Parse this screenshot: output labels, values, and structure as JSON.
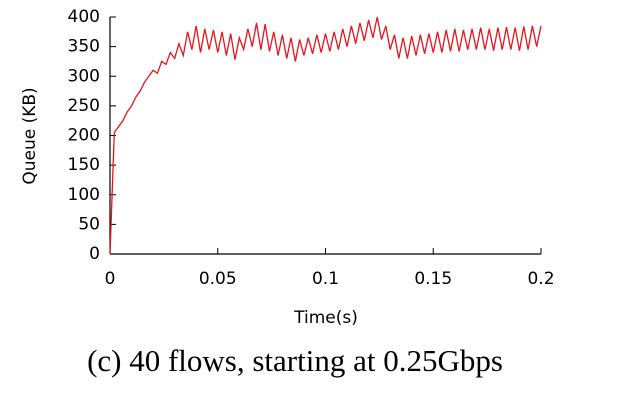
{
  "chart_data": {
    "type": "line",
    "caption": "(c) 40 flows, starting at 0.25Gbps",
    "x_label": "Time(s)",
    "y_label": "Queue (KB)",
    "xlim": [
      0,
      0.2
    ],
    "xticks": [
      0,
      0.05,
      0.1,
      0.15,
      0.2
    ],
    "ylim": [
      0,
      400
    ],
    "yticks": [
      0,
      50,
      100,
      150,
      200,
      250,
      300,
      350,
      400
    ],
    "x": [
      0,
      0.002,
      0.004,
      0.006,
      0.008,
      0.01,
      0.012,
      0.014,
      0.016,
      0.018,
      0.02,
      0.022,
      0.024,
      0.026,
      0.028,
      0.03,
      0.032,
      0.034,
      0.036,
      0.038,
      0.04,
      0.042,
      0.044,
      0.046,
      0.048,
      0.05,
      0.052,
      0.054,
      0.056,
      0.058,
      0.06,
      0.062,
      0.064,
      0.066,
      0.068,
      0.07,
      0.072,
      0.074,
      0.076,
      0.078,
      0.08,
      0.082,
      0.084,
      0.086,
      0.088,
      0.09,
      0.092,
      0.094,
      0.096,
      0.098,
      0.1,
      0.102,
      0.104,
      0.106,
      0.108,
      0.11,
      0.112,
      0.114,
      0.116,
      0.118,
      0.12,
      0.122,
      0.124,
      0.126,
      0.128,
      0.13,
      0.132,
      0.134,
      0.136,
      0.138,
      0.14,
      0.142,
      0.144,
      0.146,
      0.148,
      0.15,
      0.152,
      0.154,
      0.156,
      0.158,
      0.16,
      0.162,
      0.164,
      0.166,
      0.168,
      0.17,
      0.172,
      0.174,
      0.176,
      0.178,
      0.18,
      0.182,
      0.184,
      0.186,
      0.188,
      0.19,
      0.192,
      0.194,
      0.196,
      0.198,
      0.2
    ],
    "series": [
      {
        "color": "#e8141c",
        "values": [
          0,
          205,
          215,
          225,
          240,
          250,
          265,
          275,
          290,
          300,
          310,
          305,
          325,
          320,
          340,
          330,
          355,
          335,
          375,
          345,
          385,
          340,
          380,
          345,
          378,
          340,
          375,
          335,
          372,
          328,
          365,
          345,
          380,
          350,
          390,
          345,
          388,
          342,
          375,
          335,
          370,
          330,
          365,
          325,
          362,
          335,
          365,
          338,
          370,
          340,
          372,
          342,
          375,
          345,
          380,
          350,
          385,
          355,
          390,
          360,
          395,
          365,
          400,
          362,
          385,
          345,
          370,
          330,
          365,
          330,
          368,
          335,
          370,
          338,
          372,
          340,
          375,
          340,
          378,
          342,
          380,
          342,
          378,
          345,
          380,
          345,
          382,
          345,
          380,
          343,
          382,
          345,
          383,
          345,
          382,
          343,
          384,
          345,
          385,
          350,
          385
        ]
      }
    ]
  }
}
